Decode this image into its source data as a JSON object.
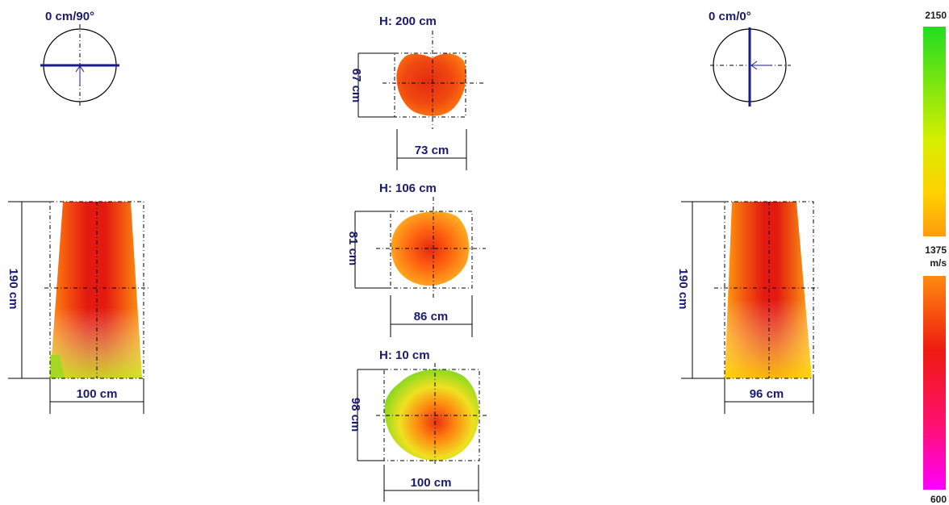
{
  "compass_left": {
    "label": "0 cm/90°",
    "arrow_color": "#1a1a8a"
  },
  "compass_right": {
    "label": "0 cm/0°",
    "arrow_color": "#1a1a8a"
  },
  "sections": [
    {
      "height_label": "H: 200 cm",
      "depth_label": "67 cm",
      "width_label": "73 cm"
    },
    {
      "height_label": "H: 106 cm",
      "depth_label": "81 cm",
      "width_label": "86 cm"
    },
    {
      "height_label": "H: 10 cm",
      "depth_label": "98 cm",
      "width_label": "100 cm"
    }
  ],
  "side_left": {
    "height_label": "190 cm",
    "width_label": "100 cm"
  },
  "side_right": {
    "height_label": "190 cm",
    "width_label": "96 cm"
  },
  "colorbar": {
    "max_label": "2150",
    "mid_label": "1375",
    "unit_label": "m/s",
    "min_label": "600",
    "colors": {
      "green": "#22dd22",
      "yellow": "#eeee00",
      "orange": "#ff9900",
      "red": "#ee1111",
      "magenta": "#ff00ff"
    }
  },
  "colors": {
    "text": "#1a1a6e",
    "red": "#e8261a",
    "orange": "#ff7a10",
    "yellow": "#f0d810",
    "green": "#7fd420"
  }
}
